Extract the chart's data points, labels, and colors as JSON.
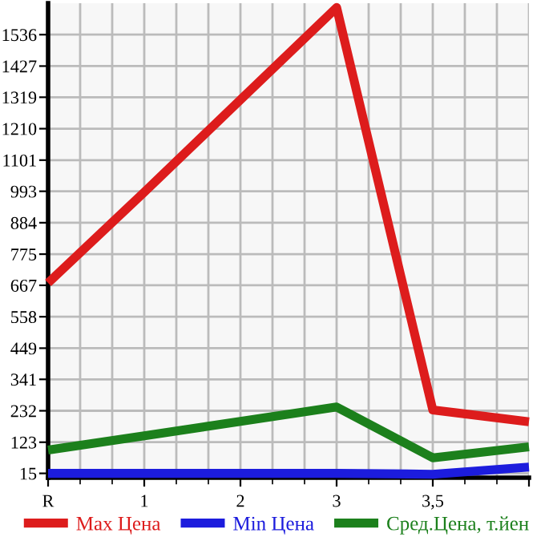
{
  "chart_data": {
    "type": "line",
    "categories": [
      "R",
      "1",
      "2",
      "3",
      "3,5",
      null
    ],
    "series": [
      {
        "name": "Max Цена",
        "color": "#dd1c1c",
        "values": [
          675,
          990,
          1310,
          1630,
          235,
          194
        ]
      },
      {
        "name": "Min Цена",
        "color": "#1c1cdd",
        "values": [
          15,
          15,
          15,
          15,
          12,
          37
        ]
      },
      {
        "name": "Сред.Цена, т.йен",
        "color": "#1c801c",
        "values": [
          96,
          145,
          195,
          245,
          69,
          107
        ]
      }
    ],
    "ylim": [
      0,
      1645
    ],
    "yticks": [
      15,
      123,
      232,
      341,
      449,
      558,
      667,
      775,
      884,
      993,
      1101,
      1210,
      1319,
      1427,
      1536
    ],
    "grid": true,
    "legend": "bottom",
    "marker": "none",
    "line_style": "solid"
  }
}
